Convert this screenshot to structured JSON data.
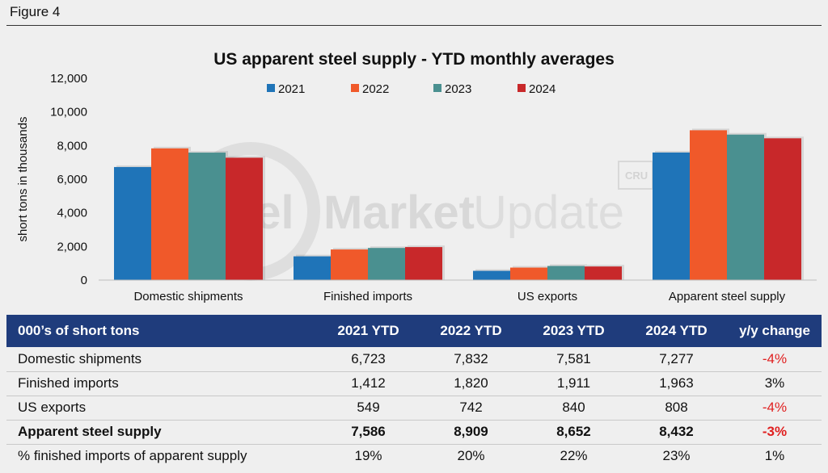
{
  "figure_label": "Figure 4",
  "watermark": {
    "word1": "Steel",
    "word2": "Market",
    "word3": "Update",
    "corner_logo": "CRU"
  },
  "chart_data": {
    "type": "bar",
    "title": "US apparent steel supply - YTD monthly averages",
    "ylabel": "short tons in thousands",
    "xlabel": "",
    "ylim": [
      0,
      12000
    ],
    "yticks": [
      0,
      2000,
      4000,
      6000,
      8000,
      10000,
      12000
    ],
    "ytick_labels": [
      "0",
      "2,000",
      "4,000",
      "6,000",
      "8,000",
      "10,000",
      "12,000"
    ],
    "categories": [
      "Domestic shipments",
      "Finished imports",
      "US exports",
      "Apparent steel supply"
    ],
    "legend_position": "top",
    "series": [
      {
        "name": "2021",
        "color": "#1f74b8",
        "values": [
          6723,
          1412,
          549,
          7586
        ]
      },
      {
        "name": "2022",
        "color": "#f0592a",
        "values": [
          7832,
          1820,
          742,
          8909
        ]
      },
      {
        "name": "2023",
        "color": "#4a9090",
        "values": [
          7581,
          1911,
          840,
          8652
        ]
      },
      {
        "name": "2024",
        "color": "#c8282a",
        "values": [
          7277,
          1963,
          808,
          8432
        ]
      }
    ]
  },
  "table": {
    "headers": [
      "000’s of short tons",
      "2021 YTD",
      "2022 YTD",
      "2023 YTD",
      "2024 YTD",
      "y/y change"
    ],
    "rows": [
      {
        "label": "Domestic shipments",
        "values": [
          "6,723",
          "7,832",
          "7,581",
          "7,277"
        ],
        "change": "-4%"
      },
      {
        "label": "Finished imports",
        "values": [
          "1,412",
          "1,820",
          "1,911",
          "1,963"
        ],
        "change": "3%"
      },
      {
        "label": "US exports",
        "values": [
          "549",
          "742",
          "840",
          "808"
        ],
        "change": "-4%"
      },
      {
        "label": "Apparent steel supply",
        "values": [
          "7,586",
          "8,909",
          "8,652",
          "8,432"
        ],
        "change": "-3%"
      },
      {
        "label": "% finished imports of apparent supply",
        "values": [
          "19%",
          "20%",
          "22%",
          "23%"
        ],
        "change": "1%"
      }
    ]
  },
  "colors": {
    "header_bg": "#1f3c7c",
    "negative": "#e02020",
    "page_bg": "#efefef"
  }
}
